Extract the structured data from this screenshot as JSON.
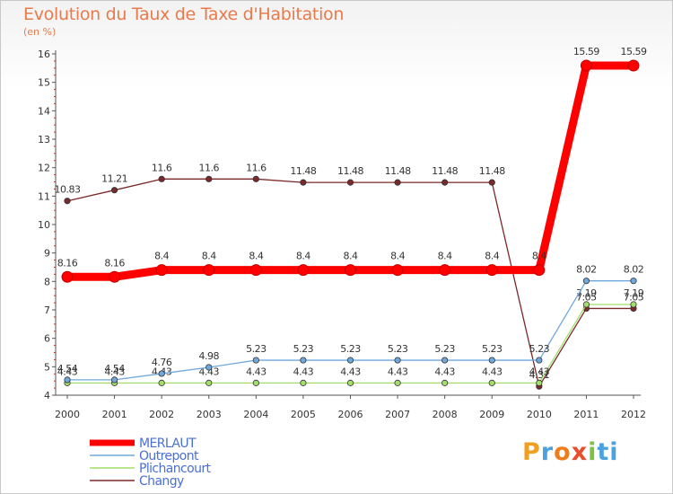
{
  "title": "Evolution du Taux de Taxe d'Habitation",
  "unit": "(en %)",
  "logo_text": "Proxiti",
  "chart_data": {
    "type": "line",
    "title": "Evolution du Taux de Taxe d'Habitation",
    "ylabel": "(en %)",
    "xlabel": "",
    "ylim": [
      4,
      16
    ],
    "yticks": [
      "4",
      "5",
      "6",
      "7",
      "8",
      "9",
      "10",
      "11",
      "12",
      "13",
      "14",
      "15",
      "16"
    ],
    "categories": [
      "2000",
      "2001",
      "2002",
      "2003",
      "2004",
      "2005",
      "2006",
      "2007",
      "2008",
      "2009",
      "2010",
      "2011",
      "2012"
    ],
    "series": [
      {
        "name": "MERLAUT",
        "color": "#ff0000",
        "values": [
          8.16,
          8.16,
          8.4,
          8.4,
          8.4,
          8.4,
          8.4,
          8.4,
          8.4,
          8.4,
          8.4,
          15.59,
          15.59
        ],
        "labels": [
          "8.16",
          "8.16",
          "8.4",
          "8.4",
          "8.4",
          "8.4",
          "8.4",
          "8.4",
          "8.4",
          "8.4",
          "8.4",
          "15.59",
          "15.59"
        ]
      },
      {
        "name": "Outrepont",
        "color": "#6fa8dc",
        "values": [
          4.54,
          4.54,
          4.76,
          4.98,
          5.23,
          5.23,
          5.23,
          5.23,
          5.23,
          5.23,
          5.23,
          8.02,
          8.02
        ],
        "labels": [
          "4.54",
          "4.54",
          "4.76",
          "4.98",
          "5.23",
          "5.23",
          "5.23",
          "5.23",
          "5.23",
          "5.23",
          "5.23",
          "8.02",
          "8.02"
        ]
      },
      {
        "name": "Plichancourt",
        "color": "#a3dd6b",
        "values": [
          4.43,
          4.43,
          4.43,
          4.43,
          4.43,
          4.43,
          4.43,
          4.43,
          4.43,
          4.43,
          4.43,
          7.19,
          7.19
        ],
        "labels": [
          "4.43",
          "4.43",
          "4.43",
          "4.43",
          "4.43",
          "4.43",
          "4.43",
          "4.43",
          "4.43",
          "4.43",
          "4.43",
          "7.19",
          "7.19"
        ]
      },
      {
        "name": "Changy",
        "color": "#7a2a2a",
        "values": [
          10.83,
          11.21,
          11.6,
          11.6,
          11.6,
          11.48,
          11.48,
          11.48,
          11.48,
          11.48,
          4.31,
          7.05,
          7.05
        ],
        "labels": [
          "10.83",
          "11.21",
          "11.6",
          "11.6",
          "11.6",
          "11.48",
          "11.48",
          "11.48",
          "11.48",
          "11.48",
          "4.31",
          "7.05",
          "7.05"
        ]
      }
    ]
  }
}
